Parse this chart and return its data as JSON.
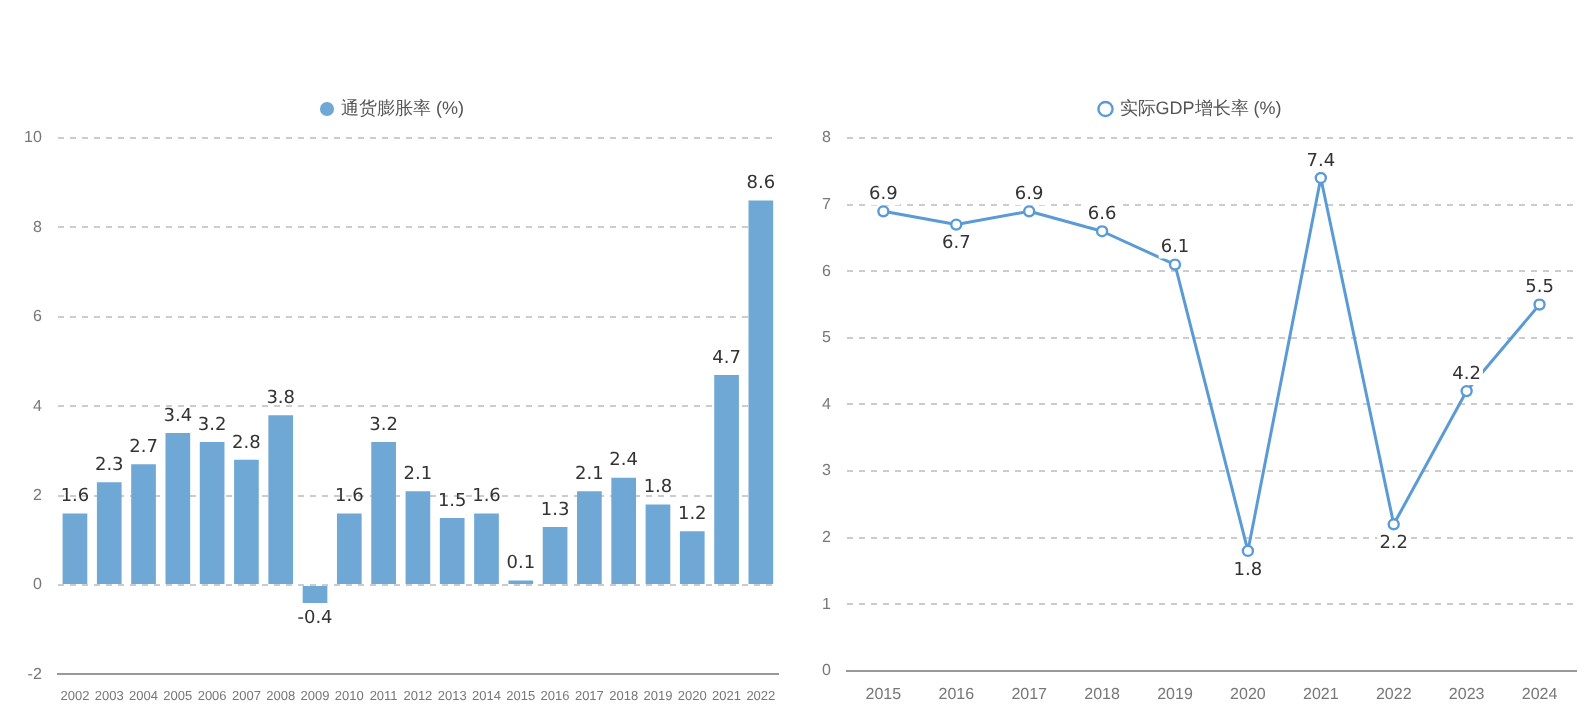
{
  "chart_data": [
    {
      "type": "bar",
      "categories": [
        "2002",
        "2003",
        "2004",
        "2005",
        "2006",
        "2007",
        "2008",
        "2009",
        "2010",
        "2011",
        "2012",
        "2013",
        "2014",
        "2015",
        "2016",
        "2017",
        "2018",
        "2019",
        "2020",
        "2021",
        "2022"
      ],
      "series": [
        {
          "name": "通货膨胀率 (%)",
          "color": "#6fa8d4",
          "values": [
            1.6,
            2.3,
            2.7,
            3.4,
            3.2,
            2.8,
            3.8,
            -0.4,
            1.6,
            3.2,
            2.1,
            1.5,
            1.6,
            0.1,
            1.3,
            2.1,
            2.4,
            1.8,
            1.2,
            4.7,
            8.6
          ]
        }
      ],
      "ylim": [
        -2,
        10
      ],
      "yticks": [
        -2,
        0,
        2,
        4,
        6,
        8,
        10
      ],
      "grid": "y",
      "legend": "top",
      "data_labels": true
    },
    {
      "type": "line",
      "categories": [
        "2015",
        "2016",
        "2017",
        "2018",
        "2019",
        "2020",
        "2021",
        "2022",
        "2023",
        "2024"
      ],
      "series": [
        {
          "name": "实际GDP增长率 (%)",
          "color": "#5b9bd5",
          "values": [
            6.9,
            6.7,
            6.9,
            6.6,
            6.1,
            1.8,
            7.4,
            2.2,
            4.2,
            5.5
          ]
        }
      ],
      "ylim": [
        0,
        8
      ],
      "yticks": [
        0,
        1,
        2,
        3,
        4,
        5,
        6,
        7,
        8
      ],
      "grid": "y",
      "legend": "top",
      "data_labels": true,
      "marker": "circle",
      "line_style": "solid"
    }
  ]
}
